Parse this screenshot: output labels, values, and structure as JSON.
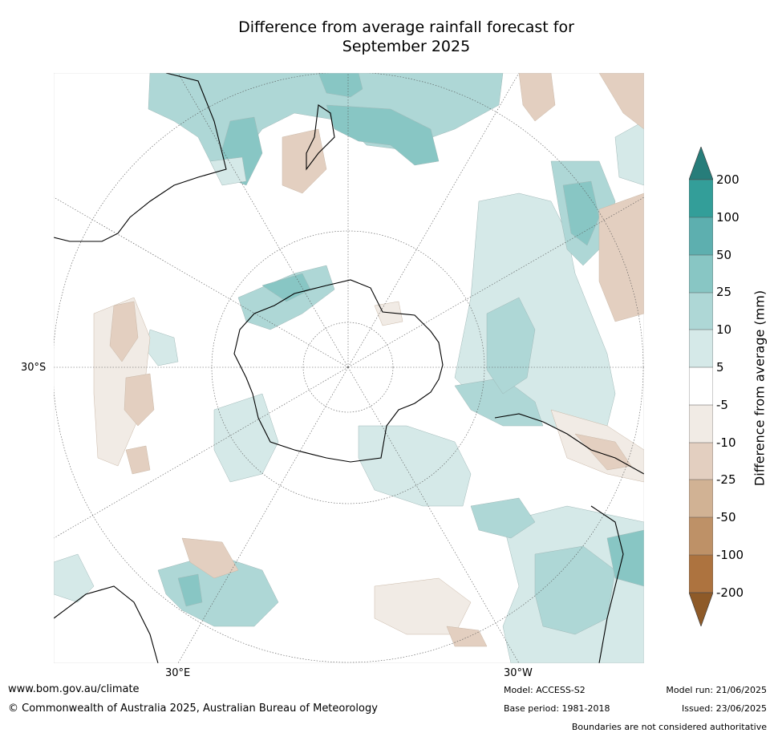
{
  "title_line1": "Difference from average rainfall forecast for",
  "title_line2": "September 2025",
  "graticule_labels": {
    "lat_30s": "30°S",
    "lon_30e": "30°E",
    "lon_30w": "30°W"
  },
  "colorbar": {
    "title": "Difference from average (mm)",
    "ticks": [
      "200",
      "100",
      "50",
      "25",
      "10",
      "5",
      "-5",
      "-10",
      "-25",
      "-50",
      "-100",
      "-200"
    ],
    "colors": {
      "wet_extreme": "#277d7a",
      "wet_100_200": "#339e99",
      "wet_50_100": "#5dafaf",
      "wet_25_50": "#88c6c4",
      "wet_10_25": "#aed7d6",
      "wet_5_10": "#d5e9e8",
      "neutral": "#ffffff",
      "dry_5_10": "#f1ebe5",
      "dry_10_25": "#e3cfc0",
      "dry_25_50": "#d1b294",
      "dry_50_100": "#be9167",
      "dry_100_200": "#ad733f",
      "dry_extreme": "#8e5a28"
    }
  },
  "footer": {
    "url": "www.bom.gov.au/climate",
    "copyright": "© Commonwealth of Australia 2025, Australian Bureau of Meteorology",
    "model": "Model: ACCESS-S2",
    "base_period": "Base period: 1981-2018",
    "model_run": "Model run: 21/06/2025",
    "issued": "Issued: 23/06/2025",
    "disclaimer": "Boundaries are not considered authoritative"
  }
}
